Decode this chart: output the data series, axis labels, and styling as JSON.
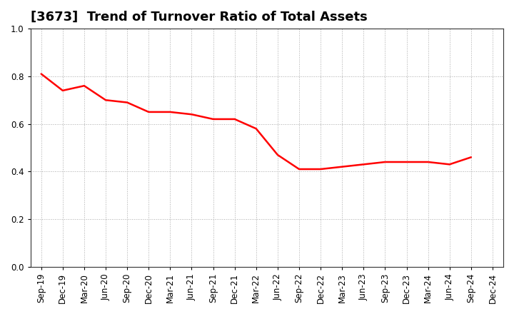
{
  "title": "[3673]  Trend of Turnover Ratio of Total Assets",
  "x_labels": [
    "Sep-19",
    "Dec-19",
    "Mar-20",
    "Jun-20",
    "Sep-20",
    "Dec-20",
    "Mar-21",
    "Jun-21",
    "Sep-21",
    "Dec-21",
    "Mar-22",
    "Jun-22",
    "Sep-22",
    "Dec-22",
    "Mar-23",
    "Jun-23",
    "Sep-23",
    "Dec-23",
    "Mar-24",
    "Jun-24",
    "Sep-24",
    "Dec-24"
  ],
  "y_values": [
    0.81,
    0.74,
    0.76,
    0.7,
    0.69,
    0.65,
    0.65,
    0.64,
    0.62,
    0.62,
    0.58,
    0.47,
    0.41,
    0.41,
    0.42,
    0.43,
    0.44,
    0.44,
    0.44,
    0.43,
    0.46,
    null
  ],
  "line_color": "#FF0000",
  "line_width": 1.8,
  "ylim": [
    0.0,
    1.0
  ],
  "yticks": [
    0.0,
    0.2,
    0.4,
    0.6,
    0.8,
    1.0
  ],
  "background_color": "#ffffff",
  "grid_color": "#aaaaaa",
  "title_fontsize": 13,
  "tick_fontsize": 8.5
}
